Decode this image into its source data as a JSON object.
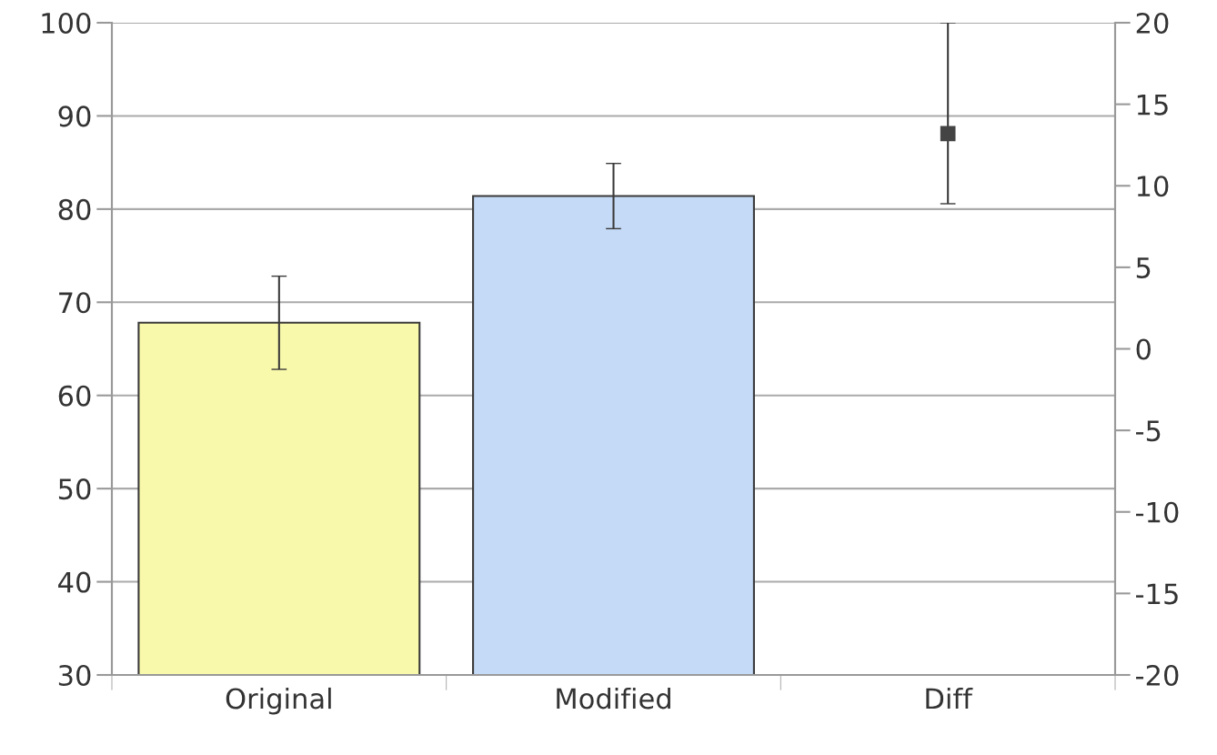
{
  "chart_data": {
    "type": "bar",
    "categories": [
      "Original",
      "Modified",
      "Diff"
    ],
    "ylim": [
      30,
      100
    ],
    "yticks": [
      30,
      40,
      50,
      60,
      70,
      80,
      90,
      100
    ],
    "y2lim": [
      -20,
      20
    ],
    "y2ticks": [
      -20,
      -15,
      -10,
      -5,
      0,
      5,
      10,
      15,
      20
    ],
    "grid": "y",
    "series": [
      {
        "values": [
          67.8,
          81.4,
          null
        ],
        "colors": [
          "#f9f9ab",
          "#c5daf7",
          "#ffffff"
        ],
        "errors": [
          5,
          3.5,
          null
        ]
      },
      {
        "type": "scatter",
        "axis": "y2",
        "color": "#444444",
        "marker": "square",
        "values": [
          null,
          null,
          13.2
        ],
        "errors": [
          null,
          null,
          [
            8.9,
            20
          ]
        ]
      }
    ]
  }
}
